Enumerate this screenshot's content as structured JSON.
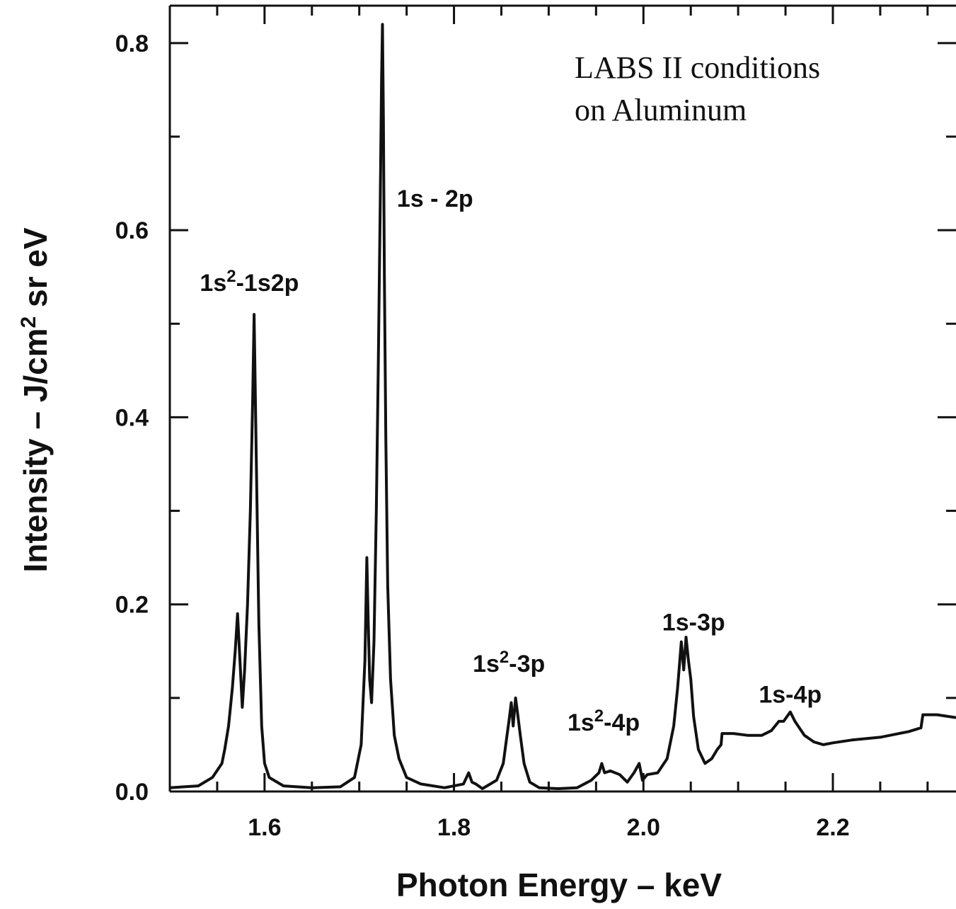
{
  "chart_data": {
    "type": "line",
    "title": "",
    "annotation_lines": [
      "LABS II  conditions",
      "on  Aluminum"
    ],
    "xlabel": "Photon Energy – keV",
    "ylabel_main": "Intensity – J/cm",
    "ylabel_sup": "2",
    "ylabel_tail": " sr eV",
    "xlim": [
      1.5,
      2.33
    ],
    "ylim": [
      0.0,
      0.84
    ],
    "xticks_major": [
      1.6,
      1.8,
      2.0,
      2.2
    ],
    "xtick_labels": [
      "1.6",
      "1.8",
      "2.0",
      "2.2"
    ],
    "xticks_minor": [
      1.55,
      1.65,
      1.7,
      1.75,
      1.85,
      1.9,
      1.95,
      2.05,
      2.1,
      2.15,
      2.25,
      2.3
    ],
    "yticks_major": [
      0.0,
      0.2,
      0.4,
      0.6,
      0.8
    ],
    "ytick_labels": [
      "0.0",
      "0.2",
      "0.4",
      "0.6",
      "0.8"
    ],
    "yticks_minor": [
      0.1,
      0.3,
      0.5,
      0.7
    ],
    "grid": false,
    "peak_labels": [
      {
        "base": "1s",
        "sup": "2",
        "tail": "-1s2p",
        "x": 1.584,
        "y": 0.535
      },
      {
        "base": "1s - 2p",
        "sup": "",
        "tail": "",
        "x": 1.78,
        "y": 0.625
      },
      {
        "base": "1s",
        "sup": "2",
        "tail": "-3p",
        "x": 1.858,
        "y": 0.128
      },
      {
        "base": "1s",
        "sup": "2",
        "tail": "-4p",
        "x": 1.958,
        "y": 0.065
      },
      {
        "base": "1s-3p",
        "sup": "",
        "tail": "",
        "x": 2.053,
        "y": 0.172
      },
      {
        "base": "1s-4p",
        "sup": "",
        "tail": "",
        "x": 2.155,
        "y": 0.095
      }
    ],
    "series": [
      {
        "x": [
          1.5,
          1.53,
          1.545,
          1.555,
          1.558,
          1.562,
          1.566,
          1.569,
          1.5715,
          1.574,
          1.5765,
          1.579,
          1.582,
          1.585,
          1.5875,
          1.589,
          1.5915,
          1.594,
          1.597,
          1.6,
          1.605,
          1.62,
          1.65,
          1.68,
          1.695,
          1.702,
          1.706,
          1.708,
          1.7095,
          1.711,
          1.713,
          1.7155,
          1.718,
          1.72,
          1.722,
          1.7235,
          1.7245,
          1.7255,
          1.7265,
          1.728,
          1.73,
          1.733,
          1.737,
          1.742,
          1.75,
          1.765,
          1.79,
          1.81,
          1.8155,
          1.819,
          1.823,
          1.83,
          1.845,
          1.852,
          1.856,
          1.858,
          1.8605,
          1.8625,
          1.865,
          1.867,
          1.87,
          1.874,
          1.88,
          1.89,
          1.91,
          1.93,
          1.945,
          1.953,
          1.956,
          1.959,
          1.965,
          1.975,
          1.983,
          1.99,
          1.9955,
          1.999,
          2.004,
          2.015,
          2.025,
          2.032,
          2.036,
          2.04,
          2.0425,
          2.045,
          2.0475,
          2.05,
          2.053,
          2.058,
          2.065,
          2.072,
          2.078,
          2.082,
          2.083,
          2.095,
          2.11,
          2.125,
          2.135,
          2.143,
          2.148,
          2.155,
          2.16,
          2.17,
          2.18,
          2.19,
          2.2,
          2.22,
          2.25,
          2.28,
          2.293,
          2.295,
          2.31,
          2.33
        ],
        "y": [
          0.004,
          0.006,
          0.015,
          0.03,
          0.045,
          0.07,
          0.11,
          0.15,
          0.19,
          0.14,
          0.09,
          0.13,
          0.2,
          0.3,
          0.42,
          0.51,
          0.34,
          0.18,
          0.07,
          0.03,
          0.015,
          0.006,
          0.004,
          0.005,
          0.015,
          0.05,
          0.14,
          0.25,
          0.18,
          0.12,
          0.095,
          0.16,
          0.3,
          0.45,
          0.62,
          0.76,
          0.82,
          0.72,
          0.55,
          0.38,
          0.22,
          0.12,
          0.06,
          0.035,
          0.015,
          0.008,
          0.004,
          0.008,
          0.02,
          0.01,
          0.008,
          0.003,
          0.012,
          0.03,
          0.06,
          0.075,
          0.095,
          0.07,
          0.1,
          0.085,
          0.06,
          0.03,
          0.01,
          0.004,
          0.003,
          0.004,
          0.012,
          0.02,
          0.03,
          0.02,
          0.022,
          0.018,
          0.01,
          0.02,
          0.03,
          0.012,
          0.018,
          0.02,
          0.035,
          0.07,
          0.11,
          0.16,
          0.13,
          0.165,
          0.14,
          0.12,
          0.08,
          0.045,
          0.03,
          0.035,
          0.045,
          0.05,
          0.062,
          0.062,
          0.06,
          0.06,
          0.065,
          0.075,
          0.075,
          0.085,
          0.075,
          0.06,
          0.053,
          0.05,
          0.052,
          0.055,
          0.058,
          0.064,
          0.068,
          0.082,
          0.082,
          0.079
        ]
      }
    ]
  }
}
